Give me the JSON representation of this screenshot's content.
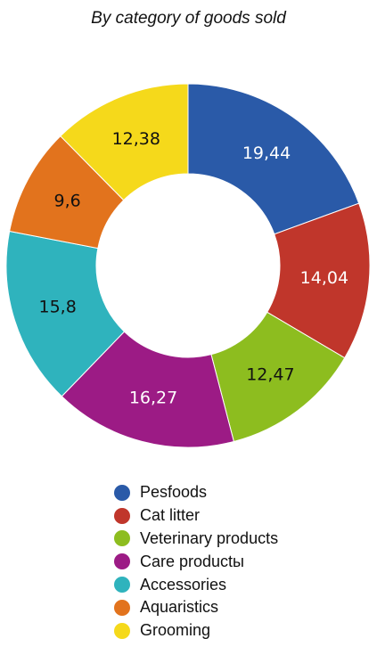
{
  "chart_data": {
    "type": "pie",
    "title": "By category of goods sold",
    "categories": [
      "Pesfoods",
      "Cat litter",
      "Veterinary products",
      "Care productы",
      "Accessories",
      "Aquaristics",
      "Grooming"
    ],
    "values": [
      19.44,
      14.04,
      12.47,
      16.27,
      15.8,
      9.6,
      12.38
    ],
    "value_labels": [
      "19,44",
      "14,04",
      "12,47",
      "16,27",
      "15,8",
      "9,6",
      "12,38"
    ],
    "colors": [
      "#2a5aa8",
      "#c0362b",
      "#8dbd1f",
      "#9c1b85",
      "#2fb3bd",
      "#e2731d",
      "#f5d91b"
    ],
    "label_colors": [
      "#ffffff",
      "#ffffff",
      "#111111",
      "#ffffff",
      "#111111",
      "#111111",
      "#111111"
    ],
    "donut": true,
    "legend_position": "bottom"
  }
}
